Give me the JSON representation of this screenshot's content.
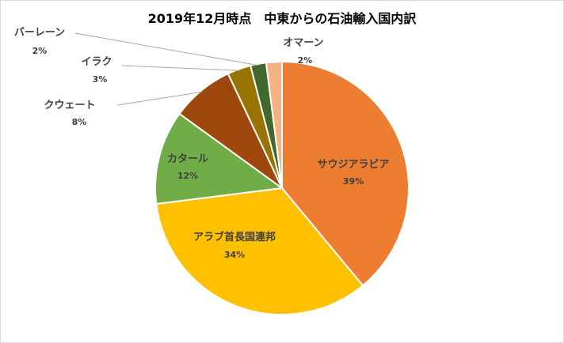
{
  "chart_data": {
    "type": "pie",
    "title": "2019年12月時点　中東からの石油輸入国内訳",
    "slices": [
      {
        "name": "サウジアラビア",
        "value": 39,
        "value_label": "39%",
        "color": "#ed7d31"
      },
      {
        "name": "アラブ首長国連邦",
        "value": 34,
        "value_label": "34%",
        "color": "#ffc000"
      },
      {
        "name": "カタール",
        "value": 12,
        "value_label": "12%",
        "color": "#70ad47"
      },
      {
        "name": "クウェート",
        "value": 8,
        "value_label": "8%",
        "color": "#9e480e"
      },
      {
        "name": "イラク",
        "value": 3,
        "value_label": "3%",
        "color": "#997300"
      },
      {
        "name": "バーレーン",
        "value": 2,
        "value_label": "2%",
        "color": "#43682b"
      },
      {
        "name": "オマーン",
        "value": 2,
        "value_label": "2%",
        "color": "#f4b183"
      }
    ],
    "label_text_color": "#404040",
    "leader_line_color": "#a6a6a6"
  }
}
